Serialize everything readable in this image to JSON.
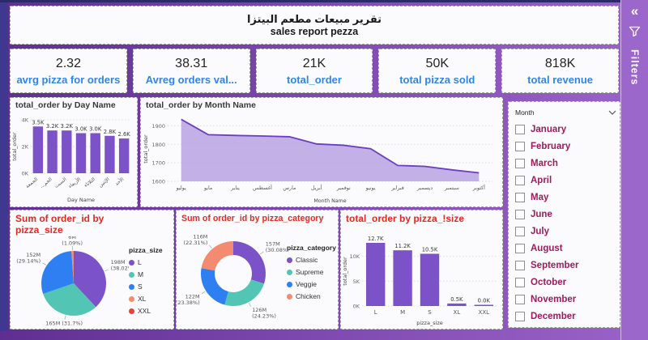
{
  "header": {
    "title_ar": "تقرير مبيعات مطعم البيتزا",
    "title_en": "sales report pezza"
  },
  "kpis": [
    {
      "value": "2.32",
      "label": "avrg pizza for orders"
    },
    {
      "value": "38.31",
      "label": "Avreg orders val..."
    },
    {
      "value": "21K",
      "label": "total_order"
    },
    {
      "value": "50K",
      "label": "total pizza sold"
    },
    {
      "value": "818K",
      "label": "total revenue"
    }
  ],
  "slicer": {
    "header": "Month",
    "options": [
      "January",
      "February",
      "March",
      "April",
      "May",
      "June",
      "July",
      "August",
      "September",
      "October",
      "November",
      "December"
    ]
  },
  "filters_pane": {
    "label": "Filters",
    "collapse_icon": "«"
  },
  "colors": {
    "accent_purple": "#7b52c7",
    "area_fill": "#b9a2e2",
    "area_line": "#6b3fc0",
    "kpi_label_blue": "#2e86e8",
    "red_title": "#e02b20",
    "slicer_text": "#9e1b5a",
    "teal": "#53c5b5",
    "blue": "#2e7ff2",
    "salmon": "#f48a70",
    "red": "#e8413c"
  },
  "chart_data": [
    {
      "type": "bar",
      "title": "total_order by Day Name",
      "categories": [
        "الجمعة",
        "...الخم",
        "السبت",
        "الأربعاء",
        "الثلاثاء",
        "الإثنين",
        "الأحد"
      ],
      "values": [
        3.5,
        3.2,
        3.2,
        3.0,
        3.0,
        2.8,
        2.6
      ],
      "labels": [
        "3.5K",
        "3.2K",
        "3.2K",
        "3.0K",
        "3.0K",
        "2.8K",
        "2.6K"
      ],
      "ylabel": "total_order",
      "xlabel": "Day Name",
      "ymax": 4,
      "yticks": [
        {
          "label": "0K",
          "v": 0
        },
        {
          "label": "2K",
          "v": 2
        },
        {
          "label": "4K",
          "v": 4
        }
      ],
      "bar_color": "#7b52c7",
      "rotate_labels": true
    },
    {
      "type": "area",
      "title": "total_order by Month Name",
      "categories": [
        "يوليو",
        "مايو",
        "يناير",
        "أغسطس",
        "مارس",
        "أبريل",
        "نوفمبر",
        "يونيو",
        "فبراير",
        "ديسمبر",
        "سبتمبر",
        "أكتوبر"
      ],
      "values": [
        1935,
        1852,
        1848,
        1845,
        1841,
        1802,
        1795,
        1776,
        1686,
        1681,
        1662,
        1646
      ],
      "ylabel": "total_order",
      "xlabel": "Month Name",
      "ymin": 1600,
      "ymax": 1950,
      "yticks": [
        {
          "label": "1600",
          "v": 1600
        },
        {
          "label": "1700",
          "v": 1700
        },
        {
          "label": "1800",
          "v": 1800
        },
        {
          "label": "1900",
          "v": 1900
        }
      ],
      "line_color": "#6b3fc0",
      "fill_color": "#b9a2e2"
    },
    {
      "type": "pie",
      "title": "Sum of order_id by pizza_size",
      "legend_title": "pizza_size",
      "slices": [
        {
          "label": "L",
          "value": "198M",
          "pct": 38.02,
          "display": "198M|(38.02%)",
          "color": "#7b52c7"
        },
        {
          "label": "M",
          "value": "165M",
          "pct": 31.7,
          "display": "165M (31.7%)",
          "color": "#53c5b5"
        },
        {
          "label": "S",
          "value": "152M",
          "pct": 29.14,
          "display": "152M|(29.14%)",
          "color": "#2e7ff2"
        },
        {
          "label": "XL",
          "value": "6M",
          "pct": 1.09,
          "display": "6M|(1.09%)",
          "color": "#f48a70"
        },
        {
          "label": "XXL",
          "value": "",
          "pct": 0.05,
          "display": "",
          "color": "#e8413c"
        }
      ]
    },
    {
      "type": "donut",
      "title": "Sum of order_id by pizza_category",
      "legend_title": "pizza_category",
      "slices": [
        {
          "label": "Classic",
          "value": "157M",
          "pct": 30.08,
          "display": "157M|(30.08%)",
          "color": "#7b52c7"
        },
        {
          "label": "Supreme",
          "value": "126M",
          "pct": 24.23,
          "display": "126M|(24.23%)",
          "color": "#53c5b5"
        },
        {
          "label": "Veggie",
          "value": "122M",
          "pct": 23.38,
          "display": "122M|(23.38%)",
          "color": "#2e7ff2"
        },
        {
          "label": "Chicken",
          "value": "116M",
          "pct": 22.31,
          "display": "116M|(22.31%)",
          "color": "#f48a70"
        }
      ]
    },
    {
      "type": "bar",
      "title": "total_order by pizza_!size",
      "categories": [
        "L",
        "M",
        "S",
        "XL",
        "XXL"
      ],
      "values": [
        12.7,
        11.2,
        10.5,
        0.5,
        0.05
      ],
      "labels": [
        "12.7K",
        "11.2K",
        "10.5K",
        "0.5K",
        "0.0K"
      ],
      "ylabel": "total_order",
      "xlabel": "pizza_size",
      "ymax": 14,
      "yticks": [
        {
          "label": "0K",
          "v": 0
        },
        {
          "label": "5K",
          "v": 5
        },
        {
          "label": "10K",
          "v": 10
        }
      ],
      "bar_color": "#7b52c7",
      "rotate_labels": false
    }
  ]
}
